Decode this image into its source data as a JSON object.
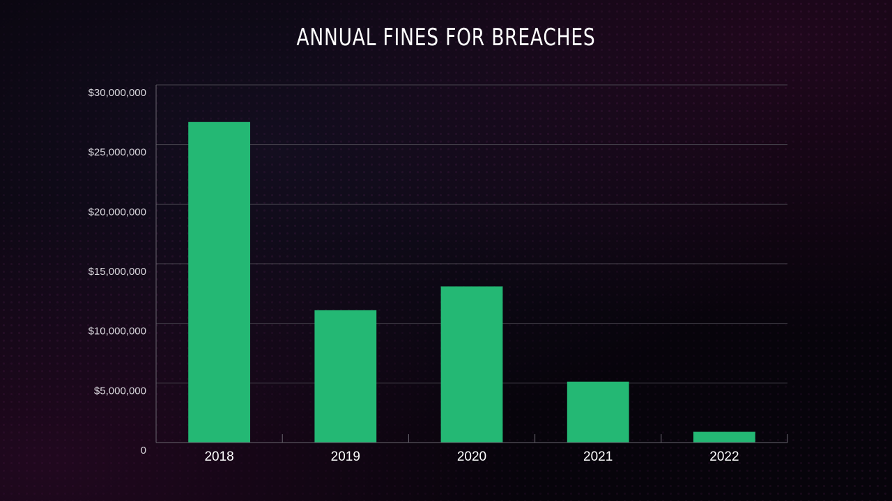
{
  "chart_data": {
    "type": "bar",
    "title": "ANNUAL FINES FOR BREACHES",
    "xlabel": "",
    "ylabel": "",
    "categories": [
      "2018",
      "2019",
      "2020",
      "2021",
      "2022"
    ],
    "values": [
      26900000,
      11100000,
      13100000,
      5100000,
      900000
    ],
    "ylim": [
      0,
      30000000
    ],
    "yticks": [
      0,
      5000000,
      10000000,
      15000000,
      20000000,
      25000000,
      30000000
    ],
    "ytick_labels": [
      "0",
      "$5,000,000",
      "$10,000,000",
      "$15,000,000",
      "$20,000,000",
      "$25,000,000",
      "$30,000,000"
    ],
    "grid": true,
    "legend": "none",
    "colors": {
      "bar": "#24b874",
      "gridline": "#4a4650",
      "axis": "#6a6670"
    }
  }
}
